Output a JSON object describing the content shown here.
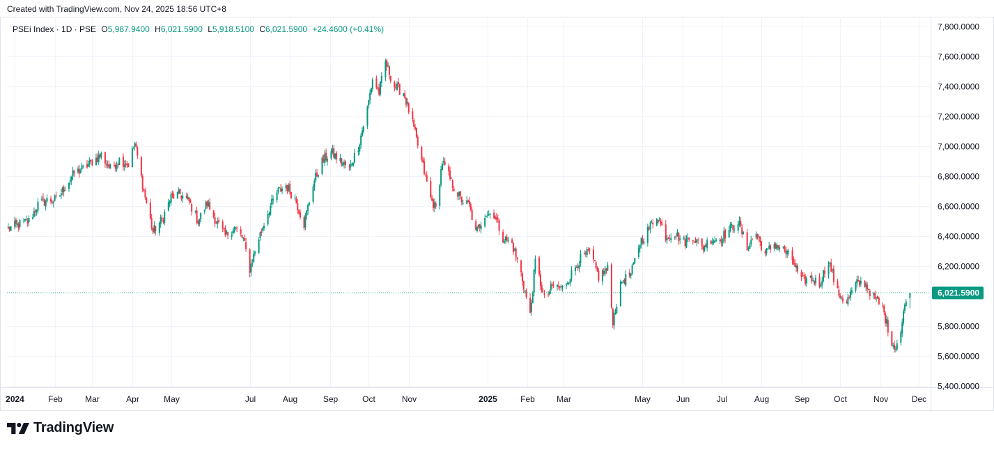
{
  "header": {
    "created_text": "Created with TradingView.com, Nov 24, 2025 18:56 UTC+8"
  },
  "legend": {
    "symbol": "PSEi Index · 1D · PSE",
    "open_label": "O",
    "open_value": "5,987.9400",
    "high_label": "H",
    "high_value": "6,021.5900",
    "low_label": "L",
    "low_value": "5,918.5100",
    "close_label": "C",
    "close_value": "6,021.5900",
    "change": "+24.4600 (+0.41%)"
  },
  "brand": {
    "name": "TradingView"
  },
  "colors": {
    "up": "#089981",
    "down": "#f23645",
    "grid": "#f0f3fa",
    "border": "#e0e3eb",
    "price_tag": "#089981"
  },
  "chart_data": {
    "type": "candlestick",
    "y_axis": {
      "position": "right",
      "range": [
        5400,
        7800
      ],
      "ticks": [
        {
          "value": 7800,
          "label": "7,800.0000"
        },
        {
          "value": 7600,
          "label": "7,600.0000"
        },
        {
          "value": 7400,
          "label": "7,400.0000"
        },
        {
          "value": 7200,
          "label": "7,200.0000"
        },
        {
          "value": 7000,
          "label": "7,000.0000"
        },
        {
          "value": 6800,
          "label": "6,800.0000"
        },
        {
          "value": 6600,
          "label": "6,600.0000"
        },
        {
          "value": 6400,
          "label": "6,400.0000"
        },
        {
          "value": 6200,
          "label": "6,200.0000"
        },
        {
          "value": 5800,
          "label": "5,800.0000"
        },
        {
          "value": 5600,
          "label": "5,600.0000"
        },
        {
          "value": 5400,
          "label": "5,400.0000"
        }
      ]
    },
    "x_axis": {
      "range": [
        "2023-12-26",
        "2025-12-10"
      ],
      "ticks": [
        {
          "date": "2024-01-01",
          "label": "2024",
          "bold": true
        },
        {
          "date": "2024-02-01",
          "label": "Feb"
        },
        {
          "date": "2024-03-01",
          "label": "Mar"
        },
        {
          "date": "2024-04-01",
          "label": "Apr"
        },
        {
          "date": "2024-05-01",
          "label": "May"
        },
        {
          "date": "2024-07-01",
          "label": "Jul"
        },
        {
          "date": "2024-08-01",
          "label": "Aug"
        },
        {
          "date": "2024-09-01",
          "label": "Sep"
        },
        {
          "date": "2024-10-01",
          "label": "Oct"
        },
        {
          "date": "2024-11-01",
          "label": "Nov"
        },
        {
          "date": "2025-01-01",
          "label": "2025",
          "bold": true
        },
        {
          "date": "2025-02-01",
          "label": "Feb"
        },
        {
          "date": "2025-03-01",
          "label": "Mar"
        },
        {
          "date": "2025-05-01",
          "label": "May"
        },
        {
          "date": "2025-06-01",
          "label": "Jun"
        },
        {
          "date": "2025-07-01",
          "label": "Jul"
        },
        {
          "date": "2025-08-01",
          "label": "Aug"
        },
        {
          "date": "2025-09-01",
          "label": "Sep"
        },
        {
          "date": "2025-10-01",
          "label": "Oct"
        },
        {
          "date": "2025-11-01",
          "label": "Nov"
        },
        {
          "date": "2025-12-01",
          "label": "Dec"
        }
      ]
    },
    "last_price": {
      "value": 6021.59,
      "label": "6,021.5900"
    },
    "close_path": [
      [
        "2023-12-27",
        6450
      ],
      [
        "2024-01-05",
        6480
      ],
      [
        "2024-01-12",
        6500
      ],
      [
        "2024-01-19",
        6610
      ],
      [
        "2024-01-26",
        6640
      ],
      [
        "2024-02-02",
        6640
      ],
      [
        "2024-02-09",
        6730
      ],
      [
        "2024-02-16",
        6820
      ],
      [
        "2024-02-23",
        6850
      ],
      [
        "2024-03-01",
        6900
      ],
      [
        "2024-03-08",
        6940
      ],
      [
        "2024-03-15",
        6850
      ],
      [
        "2024-03-22",
        6910
      ],
      [
        "2024-03-29",
        6880
      ],
      [
        "2024-04-03",
        7020
      ],
      [
        "2024-04-10",
        6700
      ],
      [
        "2024-04-17",
        6430
      ],
      [
        "2024-04-24",
        6510
      ],
      [
        "2024-05-01",
        6660
      ],
      [
        "2024-05-08",
        6680
      ],
      [
        "2024-05-15",
        6630
      ],
      [
        "2024-05-22",
        6500
      ],
      [
        "2024-05-29",
        6620
      ],
      [
        "2024-06-05",
        6500
      ],
      [
        "2024-06-12",
        6400
      ],
      [
        "2024-06-19",
        6460
      ],
      [
        "2024-06-26",
        6380
      ],
      [
        "2024-07-01",
        6180
      ],
      [
        "2024-07-08",
        6390
      ],
      [
        "2024-07-15",
        6560
      ],
      [
        "2024-07-22",
        6690
      ],
      [
        "2024-07-29",
        6740
      ],
      [
        "2024-08-05",
        6650
      ],
      [
        "2024-08-12",
        6480
      ],
      [
        "2024-08-19",
        6750
      ],
      [
        "2024-08-26",
        6900
      ],
      [
        "2024-09-02",
        6960
      ],
      [
        "2024-09-09",
        6900
      ],
      [
        "2024-09-16",
        6850
      ],
      [
        "2024-09-23",
        7000
      ],
      [
        "2024-09-30",
        7250
      ],
      [
        "2024-10-04",
        7450
      ],
      [
        "2024-10-09",
        7360
      ],
      [
        "2024-10-14",
        7560
      ],
      [
        "2024-10-21",
        7400
      ],
      [
        "2024-10-28",
        7360
      ],
      [
        "2024-11-04",
        7150
      ],
      [
        "2024-11-11",
        6900
      ],
      [
        "2024-11-18",
        6650
      ],
      [
        "2024-11-22",
        6580
      ],
      [
        "2024-11-27",
        6900
      ],
      [
        "2024-12-04",
        6760
      ],
      [
        "2024-12-11",
        6650
      ],
      [
        "2024-12-18",
        6600
      ],
      [
        "2024-12-23",
        6420
      ],
      [
        "2024-12-30",
        6550
      ],
      [
        "2025-01-06",
        6550
      ],
      [
        "2025-01-13",
        6390
      ],
      [
        "2025-01-20",
        6350
      ],
      [
        "2025-01-27",
        6150
      ],
      [
        "2025-02-03",
        5870
      ],
      [
        "2025-02-07",
        6230
      ],
      [
        "2025-02-14",
        5980
      ],
      [
        "2025-02-21",
        6070
      ],
      [
        "2025-02-28",
        6050
      ],
      [
        "2025-03-07",
        6150
      ],
      [
        "2025-03-14",
        6250
      ],
      [
        "2025-03-21",
        6290
      ],
      [
        "2025-03-28",
        6130
      ],
      [
        "2025-04-04",
        6180
      ],
      [
        "2025-04-08",
        5840
      ],
      [
        "2025-04-15",
        6100
      ],
      [
        "2025-04-22",
        6140
      ],
      [
        "2025-04-29",
        6360
      ],
      [
        "2025-05-06",
        6450
      ],
      [
        "2025-05-12",
        6540
      ],
      [
        "2025-05-19",
        6400
      ],
      [
        "2025-05-26",
        6420
      ],
      [
        "2025-06-02",
        6360
      ],
      [
        "2025-06-09",
        6400
      ],
      [
        "2025-06-16",
        6320
      ],
      [
        "2025-06-23",
        6380
      ],
      [
        "2025-06-30",
        6380
      ],
      [
        "2025-07-07",
        6440
      ],
      [
        "2025-07-14",
        6500
      ],
      [
        "2025-07-21",
        6320
      ],
      [
        "2025-07-28",
        6420
      ],
      [
        "2025-08-04",
        6280
      ],
      [
        "2025-08-11",
        6350
      ],
      [
        "2025-08-18",
        6310
      ],
      [
        "2025-08-25",
        6240
      ],
      [
        "2025-09-01",
        6100
      ],
      [
        "2025-09-08",
        6120
      ],
      [
        "2025-09-15",
        6080
      ],
      [
        "2025-09-22",
        6240
      ],
      [
        "2025-09-29",
        6020
      ],
      [
        "2025-10-06",
        5960
      ],
      [
        "2025-10-13",
        6080
      ],
      [
        "2025-10-20",
        6090
      ],
      [
        "2025-10-27",
        5990
      ],
      [
        "2025-11-03",
        5920
      ],
      [
        "2025-11-07",
        5780
      ],
      [
        "2025-11-12",
        5650
      ],
      [
        "2025-11-17",
        5760
      ],
      [
        "2025-11-21",
        5998
      ],
      [
        "2025-11-24",
        6021.59
      ]
    ]
  }
}
